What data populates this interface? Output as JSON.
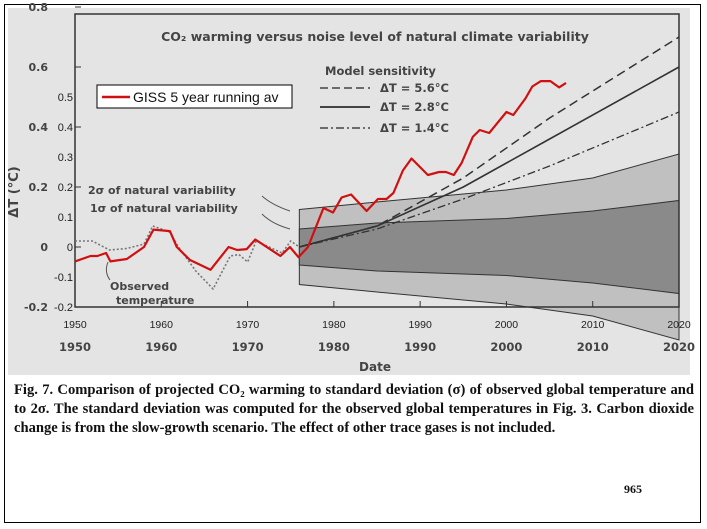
{
  "chart_data": {
    "type": "line",
    "title": "CO₂ warming versus noise level of natural climate variability",
    "xlabel": "Date",
    "ylabel": "ΔT (°C)",
    "xlim": [
      1950,
      2020
    ],
    "ylim": [
      -0.2,
      0.8
    ],
    "scan_y_ticks": [
      "0.8",
      "0.6",
      "0.4",
      "0.2",
      "0",
      "-0.2"
    ],
    "scan_y_values": [
      0.8,
      0.6,
      0.4,
      0.2,
      0,
      -0.2
    ],
    "overlay_y_ticks": [
      "0.5",
      "0.4",
      "0.3",
      "0.2",
      "0.1",
      "0",
      "-0.1",
      "-0.2"
    ],
    "overlay_y_values": [
      0.5,
      0.4,
      0.3,
      0.2,
      0.1,
      0,
      -0.1,
      -0.2
    ],
    "x_ticks": [
      "1950",
      "1960",
      "1970",
      "1980",
      "1990",
      "2000",
      "2010",
      "2020"
    ],
    "x_values": [
      1950,
      1960,
      1970,
      1980,
      1990,
      2000,
      2010,
      2020
    ],
    "legend_overlay": {
      "label": "GISS 5 year running av",
      "placement": "top-left"
    },
    "legend_model": {
      "title": "Model sensitivity",
      "entries": [
        "ΔT = 5.6°C",
        "ΔT = 2.8°C",
        "ΔT = 1.4°C"
      ]
    },
    "annotations": {
      "two_sigma": "2σ of natural variability",
      "one_sigma": "1σ of natural variability",
      "observed_1": "Observed",
      "observed_2": "temperature"
    },
    "colors": {
      "giss": "#d01010",
      "background": "#e4e4e4",
      "band1": "#8a8a8a",
      "band2": "#c0c0c0"
    },
    "series": [
      {
        "name": "GISS 5 year running av",
        "x": [
          1950,
          1951.8,
          1952.6,
          1953.6,
          1954.1,
          1956,
          1958,
          1959.1,
          1961,
          1961.8,
          1963.3,
          1965.7,
          1967.8,
          1968.8,
          1969.9,
          1970.9,
          1973.8,
          1974.9,
          1975.9,
          1977,
          1978.8,
          1979.9,
          1980.9,
          1982,
          1983.8,
          1985.1,
          1986.1,
          1986.9,
          1988,
          1989,
          1990.9,
          1992.2,
          1993,
          1993.9,
          1994.8,
          1996.1,
          1996.9,
          1998,
          2000,
          2000.8,
          2002.2,
          2003,
          2004,
          2005.1,
          2006.1,
          2006.9
        ],
        "y": [
          -0.048,
          -0.03,
          -0.03,
          -0.02,
          -0.048,
          -0.04,
          0,
          0.058,
          0.053,
          0,
          -0.043,
          -0.076,
          0,
          -0.01,
          -0.007,
          0.025,
          -0.03,
          0,
          -0.034,
          0,
          0.13,
          0.115,
          0.165,
          0.175,
          0.12,
          0.16,
          0.16,
          0.18,
          0.255,
          0.295,
          0.24,
          0.25,
          0.25,
          0.24,
          0.28,
          0.367,
          0.39,
          0.38,
          0.45,
          0.44,
          0.495,
          0.535,
          0.553,
          0.553,
          0.532,
          0.547
        ]
      },
      {
        "name": "Observed temperature",
        "x": [
          1950,
          1952,
          1954,
          1956,
          1958,
          1959,
          1961,
          1962,
          1964,
          1966,
          1968,
          1969,
          1970,
          1971,
          1974,
          1975,
          1976
        ],
        "y": [
          0.02,
          0.02,
          -0.01,
          -0.005,
          0.01,
          0.07,
          0.05,
          0,
          -0.08,
          -0.14,
          -0.03,
          -0.025,
          -0.05,
          0.02,
          -0.02,
          0.02,
          0
        ]
      },
      {
        "name": "ΔT = 5.6°C",
        "x": [
          1976,
          1985,
          1995,
          2005,
          2020
        ],
        "y": [
          0,
          0.07,
          0.23,
          0.43,
          0.7
        ]
      },
      {
        "name": "ΔT = 2.8°C",
        "x": [
          1976,
          1985,
          1995,
          2005,
          2020
        ],
        "y": [
          0,
          0.07,
          0.2,
          0.36,
          0.6
        ]
      },
      {
        "name": "ΔT = 1.4°C",
        "x": [
          1976,
          1985,
          1995,
          2005,
          2020
        ],
        "y": [
          0,
          0.06,
          0.16,
          0.27,
          0.45
        ]
      }
    ],
    "bands": {
      "x": [
        1976,
        1985,
        2000,
        2010,
        2020
      ],
      "one_sigma": [
        0.06,
        0.08,
        0.095,
        0.12,
        0.155
      ],
      "two_sigma": [
        0.125,
        0.15,
        0.19,
        0.23,
        0.31
      ]
    }
  },
  "caption": "Fig. 7. Comparison of projected CO₂ warming to standard deviation (σ) of observed global temperature and to 2σ. The standard deviation was computed for the observed global temperatures in Fig. 3. Carbon dioxide change is from the slow-growth scenario. The effect of other trace gases is not included.",
  "page_number": "965"
}
